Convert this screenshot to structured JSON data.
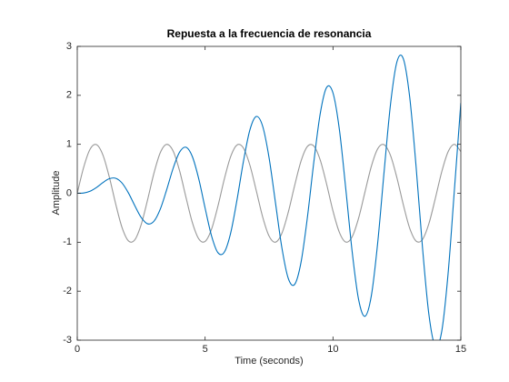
{
  "chart_data": {
    "type": "line",
    "title": "Repuesta a la frecuencia de resonancia",
    "xlabel": "Time (seconds)",
    "ylabel": "Amplitude",
    "x": [
      0,
      0.25,
      0.5,
      0.75,
      1,
      1.25,
      1.5,
      1.75,
      2,
      2.25,
      2.5,
      2.75,
      3,
      3.25,
      3.5,
      3.75,
      4,
      4.25,
      4.5,
      4.75,
      5,
      5.25,
      5.5,
      5.75,
      6,
      6.25,
      6.5,
      6.75,
      7,
      7.25,
      7.5,
      7.75,
      8,
      8.25,
      8.5,
      8.75,
      9,
      9.25,
      9.5,
      9.75,
      10,
      10.25,
      10.5,
      10.75,
      11,
      11.25,
      11.5,
      11.75,
      12,
      12.25,
      12.5,
      12.75,
      13,
      13.25,
      13.5,
      13.75,
      14,
      14.25,
      14.5,
      14.75,
      15
    ],
    "series": [
      {
        "color": "#999999",
        "values": [
          0,
          0.53,
          0.899,
          0.994,
          0.786,
          0.339,
          -0.211,
          -0.698,
          -0.972,
          -0.951,
          -0.639,
          -0.134,
          0.412,
          0.833,
          1.0,
          0.862,
          0.463,
          -0.078,
          -0.595,
          -0.93,
          -0.983,
          -0.736,
          -0.265,
          0.287,
          0.751,
          0.987,
          0.922,
          0.576,
          0.056,
          -0.483,
          -0.873,
          -0.999,
          -0.82,
          -0.391,
          0.155,
          0.656,
          0.956,
          0.966,
          0.682,
          0.19,
          -0.361,
          -0.797,
          -0.996,
          -0.889,
          -0.512,
          0.022,
          0.549,
          0.909,
          0.992,
          0.773,
          0.318,
          -0.232,
          -0.713,
          -0.976,
          -0.943,
          -0.622,
          -0.112,
          0.432,
          0.845,
          1.0,
          0.851
        ]
      },
      {
        "color": "#0072bd",
        "values": [
          0,
          0.006,
          0.041,
          0.117,
          0.217,
          0.297,
          0.307,
          0.21,
          0.008,
          -0.253,
          -0.494,
          -0.623,
          -0.57,
          -0.319,
          0.078,
          0.511,
          0.839,
          0.94,
          0.75,
          0.297,
          -0.303,
          -0.868,
          -1.212,
          -1.203,
          -0.81,
          -0.126,
          0.655,
          1.292,
          1.568,
          1.37,
          0.729,
          -0.188,
          -1.107,
          -1.736,
          -1.862,
          -1.412,
          -0.492,
          0.632,
          1.621,
          2.16,
          2.05,
          1.305,
          0.095,
          -1.19,
          -2.164,
          -2.513,
          -2.095,
          -1.007,
          0.443,
          1.817,
          2.682,
          2.751,
          1.966,
          0.548,
          -1.103,
          -2.47,
          -3.123,
          -2.831,
          -1.653,
          0.08,
          1.846
        ]
      }
    ],
    "xlim": [
      0,
      15
    ],
    "xticks": [
      0,
      5,
      10,
      15
    ],
    "ylim": [
      -3,
      3
    ],
    "yticks": [
      -3,
      -2,
      -1,
      0,
      1,
      2,
      3
    ],
    "grid": false
  }
}
